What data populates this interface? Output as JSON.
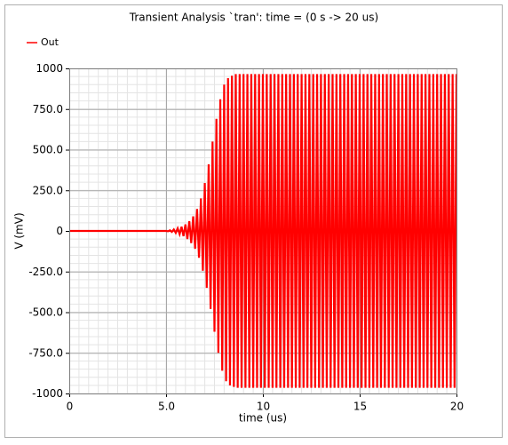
{
  "chart_data": {
    "type": "line",
    "title": "Transient Analysis `tran': time = (0 s -> 20 us)",
    "xlabel": "time (us)",
    "ylabel": "V (mV)",
    "legend": "top-left",
    "grid": true,
    "xlim": [
      0,
      20
    ],
    "xticks": [
      0,
      {
        "value": 5,
        "label": "5.0"
      },
      10,
      15,
      20
    ],
    "ylim": [
      -1000,
      1000
    ],
    "yticks": [
      -1000,
      {
        "value": -750,
        "label": "-750.0"
      },
      {
        "value": -500,
        "label": "-500.0"
      },
      {
        "value": -250,
        "label": "-250.0"
      },
      0,
      {
        "value": 250,
        "label": "250.0"
      },
      {
        "value": 500,
        "label": "500.0"
      },
      {
        "value": 750,
        "label": "750.0"
      },
      1000
    ],
    "x": [
      0,
      5.0,
      5.1,
      5.2,
      5.3,
      5.4,
      5.5,
      5.6,
      5.7,
      5.8,
      5.9,
      6.0,
      6.1,
      6.2,
      6.3,
      6.4,
      6.5,
      6.6,
      6.7,
      6.8,
      6.9,
      7.0,
      7.1,
      7.2,
      7.3,
      7.4,
      7.5,
      7.6,
      7.7,
      7.8,
      7.9,
      8.0,
      8.1,
      8.2,
      8.3,
      8.4,
      8.5,
      8.6,
      8.7,
      8.8,
      8.9,
      9.0,
      9.1,
      9.2,
      9.3,
      9.4,
      9.5,
      9.6,
      9.7,
      9.8,
      9.9,
      10.0,
      10.1,
      10.2,
      10.3,
      10.4,
      10.5,
      10.6,
      10.7,
      10.8,
      10.9,
      11.0,
      11.1,
      11.2,
      11.3,
      11.4,
      11.5,
      11.6,
      11.7,
      11.8,
      11.9,
      12.0,
      12.1,
      12.2,
      12.3,
      12.4,
      12.5,
      12.6,
      12.7,
      12.8,
      12.9,
      13.0,
      13.1,
      13.2,
      13.3,
      13.4,
      13.5,
      13.6,
      13.7,
      13.8,
      13.9,
      14.0,
      14.1,
      14.2,
      14.3,
      14.4,
      14.5,
      14.6,
      14.7,
      14.8,
      14.9,
      15.0,
      15.1,
      15.2,
      15.3,
      15.4,
      15.5,
      15.6,
      15.7,
      15.8,
      15.9,
      16.0,
      16.1,
      16.2,
      16.3,
      16.4,
      16.5,
      16.6,
      16.7,
      16.8,
      16.9,
      17.0,
      17.1,
      17.2,
      17.3,
      17.4,
      17.5,
      17.6,
      17.7,
      17.8,
      17.9,
      18.0,
      18.1,
      18.2,
      18.3,
      18.4,
      18.5,
      18.6,
      18.7,
      18.8,
      18.9,
      19.0,
      19.1,
      19.2,
      19.3,
      19.4,
      19.5,
      19.6,
      19.7,
      19.8,
      19.9,
      20.0
    ],
    "series": [
      {
        "name": "Out",
        "color": "#ff0000",
        "values": [
          0,
          0,
          -2,
          4,
          -6,
          9,
          -12,
          16,
          -20,
          26,
          -32,
          40,
          -50,
          60,
          -75,
          90,
          -110,
          135,
          -165,
          200,
          -245,
          295,
          -350,
          410,
          -480,
          550,
          -620,
          690,
          -750,
          810,
          -860,
          900,
          -925,
          940,
          -950,
          955,
          -960,
          965,
          -965,
          965,
          -965,
          965,
          -965,
          965,
          -965,
          965,
          -965,
          965,
          -965,
          965,
          -965,
          965,
          -965,
          965,
          -965,
          965,
          -965,
          965,
          -965,
          965,
          -965,
          965,
          -965,
          965,
          -965,
          965,
          -965,
          965,
          -965,
          965,
          -965,
          965,
          -965,
          965,
          -965,
          965,
          -965,
          965,
          -965,
          965,
          -965,
          965,
          -965,
          965,
          -965,
          965,
          -965,
          965,
          -965,
          965,
          -965,
          965,
          -965,
          965,
          -965,
          965,
          -965,
          965,
          -965,
          965,
          -965,
          965,
          -965,
          965,
          -965,
          965,
          -965,
          965,
          -965,
          965,
          -965,
          965,
          -965,
          965,
          -965,
          965,
          -965,
          965,
          -965,
          965,
          -965,
          965,
          -965,
          965,
          -965,
          965,
          -965,
          965,
          -965,
          965,
          -965,
          965,
          -965,
          965,
          -965,
          965,
          -965,
          965,
          -965,
          965,
          -965,
          965,
          -965,
          965,
          -965,
          965,
          -965,
          965,
          -965,
          965,
          -965,
          965
        ]
      }
    ]
  }
}
